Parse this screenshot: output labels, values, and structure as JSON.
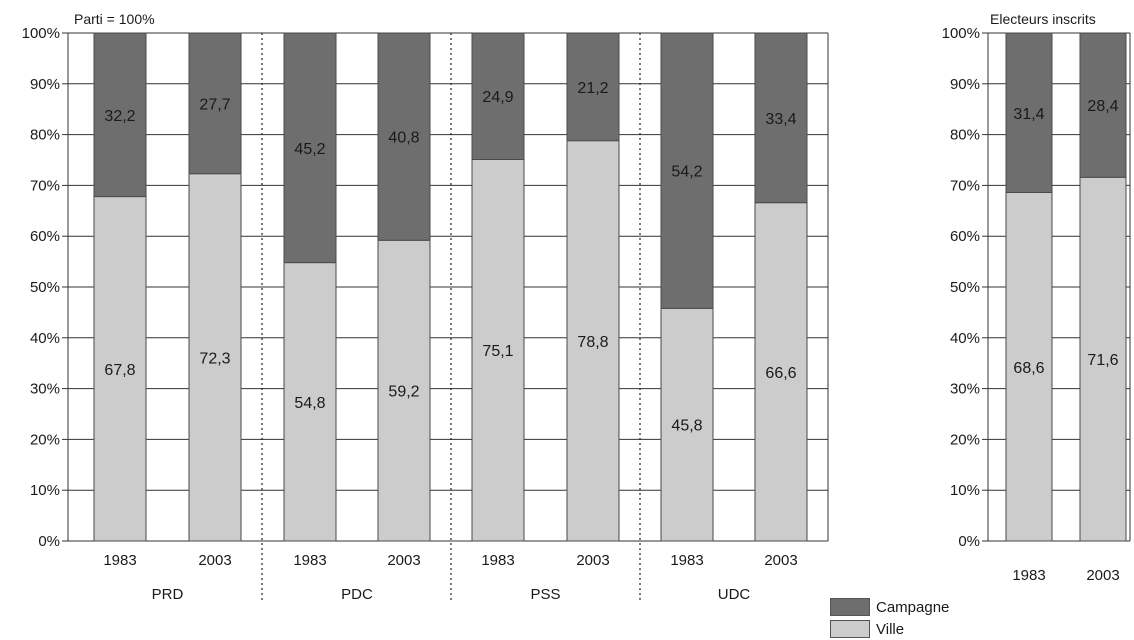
{
  "chart_data": [
    {
      "type": "bar",
      "stacked": true,
      "percent_scale": true,
      "corner_label": "Parti = 100%",
      "ylim": [
        0,
        100
      ],
      "yticks": [
        "0%",
        "10%",
        "20%",
        "30%",
        "40%",
        "50%",
        "60%",
        "70%",
        "80%",
        "90%",
        "100%"
      ],
      "groups": [
        {
          "label": "PRD",
          "categories": [
            "1983",
            "2003"
          ],
          "ville": [
            67.8,
            72.3
          ],
          "campagne": [
            32.2,
            27.7
          ]
        },
        {
          "label": "PDC",
          "categories": [
            "1983",
            "2003"
          ],
          "ville": [
            54.8,
            59.2
          ],
          "campagne": [
            45.2,
            40.8
          ]
        },
        {
          "label": "PSS",
          "categories": [
            "1983",
            "2003"
          ],
          "ville": [
            75.1,
            78.8
          ],
          "campagne": [
            24.9,
            21.2
          ]
        },
        {
          "label": "UDC",
          "categories": [
            "1983",
            "2003"
          ],
          "ville": [
            45.8,
            66.6
          ],
          "campagne": [
            54.2,
            33.4
          ]
        }
      ],
      "grid": true,
      "group_separators": "dotted"
    },
    {
      "type": "bar",
      "stacked": true,
      "percent_scale": true,
      "corner_label": "Electeurs inscrits",
      "ylim": [
        0,
        100
      ],
      "yticks": [
        "0%",
        "10%",
        "20%",
        "30%",
        "40%",
        "50%",
        "60%",
        "70%",
        "80%",
        "90%",
        "100%"
      ],
      "categories": [
        "1983",
        "2003"
      ],
      "ville": [
        68.6,
        71.6
      ],
      "campagne": [
        31.4,
        28.4
      ],
      "grid": true
    }
  ],
  "legend": {
    "placement": "bottom-right",
    "items": [
      {
        "label": "Campagne",
        "color": "#6e6e6e"
      },
      {
        "label": "Ville",
        "color": "#cccccc"
      }
    ]
  },
  "colors": {
    "campagne": "#6e6e6e",
    "ville": "#cccccc",
    "outline": "#4a4a4a"
  }
}
